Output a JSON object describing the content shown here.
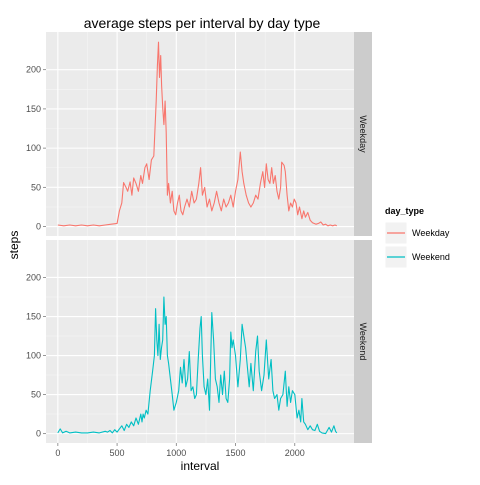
{
  "chart_data": {
    "type": "line",
    "title": "average steps per interval by day type",
    "xlabel": "interval",
    "ylabel": "steps",
    "xlim": [
      -100,
      2500
    ],
    "ylim": [
      -12,
      248
    ],
    "xticks": [
      0,
      500,
      1000,
      1500,
      2000
    ],
    "yticks": [
      0,
      50,
      100,
      150,
      200
    ],
    "grid": true,
    "facets": [
      "Weekday",
      "Weekend"
    ],
    "legend": {
      "title": "day_type",
      "position": "right",
      "entries": [
        "Weekday",
        "Weekend"
      ]
    },
    "series": [
      {
        "name": "Weekday",
        "color": "#F8766D",
        "points": [
          [
            0,
            2
          ],
          [
            50,
            1
          ],
          [
            100,
            2
          ],
          [
            150,
            1
          ],
          [
            200,
            2
          ],
          [
            250,
            1
          ],
          [
            300,
            2
          ],
          [
            350,
            1
          ],
          [
            400,
            2
          ],
          [
            450,
            3
          ],
          [
            500,
            4
          ],
          [
            520,
            20
          ],
          [
            540,
            30
          ],
          [
            555,
            56
          ],
          [
            575,
            50
          ],
          [
            590,
            45
          ],
          [
            610,
            57
          ],
          [
            625,
            40
          ],
          [
            640,
            62
          ],
          [
            660,
            55
          ],
          [
            680,
            45
          ],
          [
            700,
            65
          ],
          [
            715,
            55
          ],
          [
            735,
            75
          ],
          [
            750,
            80
          ],
          [
            770,
            60
          ],
          [
            790,
            85
          ],
          [
            810,
            90
          ],
          [
            830,
            160
          ],
          [
            840,
            205
          ],
          [
            850,
            235
          ],
          [
            858,
            190
          ],
          [
            868,
            218
          ],
          [
            876,
            180
          ],
          [
            886,
            150
          ],
          [
            895,
            130
          ],
          [
            905,
            160
          ],
          [
            915,
            120
          ],
          [
            925,
            40
          ],
          [
            935,
            55
          ],
          [
            950,
            30
          ],
          [
            965,
            45
          ],
          [
            980,
            20
          ],
          [
            995,
            15
          ],
          [
            1010,
            30
          ],
          [
            1025,
            40
          ],
          [
            1040,
            20
          ],
          [
            1055,
            15
          ],
          [
            1070,
            25
          ],
          [
            1090,
            35
          ],
          [
            1110,
            25
          ],
          [
            1130,
            45
          ],
          [
            1150,
            30
          ],
          [
            1170,
            35
          ],
          [
            1190,
            55
          ],
          [
            1205,
            75
          ],
          [
            1220,
            40
          ],
          [
            1240,
            50
          ],
          [
            1260,
            25
          ],
          [
            1280,
            35
          ],
          [
            1300,
            20
          ],
          [
            1320,
            30
          ],
          [
            1340,
            45
          ],
          [
            1360,
            30
          ],
          [
            1380,
            20
          ],
          [
            1400,
            35
          ],
          [
            1420,
            25
          ],
          [
            1440,
            30
          ],
          [
            1460,
            40
          ],
          [
            1480,
            25
          ],
          [
            1500,
            45
          ],
          [
            1520,
            60
          ],
          [
            1540,
            95
          ],
          [
            1555,
            70
          ],
          [
            1570,
            55
          ],
          [
            1590,
            40
          ],
          [
            1610,
            30
          ],
          [
            1630,
            25
          ],
          [
            1650,
            30
          ],
          [
            1670,
            40
          ],
          [
            1690,
            35
          ],
          [
            1710,
            55
          ],
          [
            1730,
            70
          ],
          [
            1745,
            50
          ],
          [
            1760,
            80
          ],
          [
            1775,
            60
          ],
          [
            1790,
            55
          ],
          [
            1805,
            75
          ],
          [
            1820,
            55
          ],
          [
            1835,
            65
          ],
          [
            1850,
            45
          ],
          [
            1865,
            35
          ],
          [
            1880,
            50
          ],
          [
            1890,
            82
          ],
          [
            1900,
            80
          ],
          [
            1910,
            78
          ],
          [
            1920,
            70
          ],
          [
            1935,
            40
          ],
          [
            1950,
            20
          ],
          [
            1965,
            30
          ],
          [
            1980,
            25
          ],
          [
            1995,
            35
          ],
          [
            2010,
            30
          ],
          [
            2025,
            15
          ],
          [
            2040,
            25
          ],
          [
            2060,
            10
          ],
          [
            2075,
            20
          ],
          [
            2090,
            12
          ],
          [
            2110,
            18
          ],
          [
            2130,
            8
          ],
          [
            2150,
            5
          ],
          [
            2180,
            3
          ],
          [
            2200,
            4
          ],
          [
            2220,
            6
          ],
          [
            2240,
            2
          ],
          [
            2260,
            3
          ],
          [
            2280,
            1
          ],
          [
            2300,
            2
          ],
          [
            2320,
            1
          ],
          [
            2340,
            2
          ],
          [
            2355,
            1
          ]
        ]
      },
      {
        "name": "Weekend",
        "color": "#00BFC4",
        "points": [
          [
            0,
            1
          ],
          [
            20,
            6
          ],
          [
            40,
            1
          ],
          [
            70,
            3
          ],
          [
            100,
            1
          ],
          [
            150,
            2
          ],
          [
            200,
            1
          ],
          [
            250,
            1
          ],
          [
            300,
            2
          ],
          [
            350,
            1
          ],
          [
            400,
            3
          ],
          [
            420,
            2
          ],
          [
            440,
            4
          ],
          [
            460,
            1
          ],
          [
            480,
            5
          ],
          [
            500,
            2
          ],
          [
            520,
            6
          ],
          [
            540,
            10
          ],
          [
            560,
            4
          ],
          [
            580,
            12
          ],
          [
            600,
            8
          ],
          [
            620,
            15
          ],
          [
            640,
            10
          ],
          [
            660,
            20
          ],
          [
            680,
            12
          ],
          [
            700,
            25
          ],
          [
            710,
            15
          ],
          [
            720,
            25
          ],
          [
            730,
            20
          ],
          [
            745,
            30
          ],
          [
            760,
            25
          ],
          [
            780,
            55
          ],
          [
            800,
            80
          ],
          [
            815,
            100
          ],
          [
            825,
            160
          ],
          [
            835,
            120
          ],
          [
            845,
            100
          ],
          [
            855,
            140
          ],
          [
            865,
            95
          ],
          [
            875,
            110
          ],
          [
            885,
            120
          ],
          [
            895,
            175
          ],
          [
            905,
            140
          ],
          [
            915,
            150
          ],
          [
            925,
            100
          ],
          [
            935,
            90
          ],
          [
            950,
            70
          ],
          [
            965,
            50
          ],
          [
            980,
            30
          ],
          [
            1000,
            40
          ],
          [
            1020,
            55
          ],
          [
            1035,
            85
          ],
          [
            1050,
            65
          ],
          [
            1065,
            95
          ],
          [
            1080,
            60
          ],
          [
            1095,
            70
          ],
          [
            1110,
            105
          ],
          [
            1125,
            55
          ],
          [
            1140,
            60
          ],
          [
            1155,
            45
          ],
          [
            1170,
            50
          ],
          [
            1185,
            95
          ],
          [
            1200,
            135
          ],
          [
            1210,
            150
          ],
          [
            1220,
            100
          ],
          [
            1235,
            60
          ],
          [
            1250,
            50
          ],
          [
            1265,
            70
          ],
          [
            1280,
            30
          ],
          [
            1300,
            155
          ],
          [
            1315,
            120
          ],
          [
            1330,
            70
          ],
          [
            1345,
            60
          ],
          [
            1360,
            40
          ],
          [
            1375,
            75
          ],
          [
            1390,
            50
          ],
          [
            1405,
            80
          ],
          [
            1420,
            45
          ],
          [
            1435,
            40
          ],
          [
            1450,
            70
          ],
          [
            1460,
            130
          ],
          [
            1470,
            110
          ],
          [
            1480,
            120
          ],
          [
            1500,
            100
          ],
          [
            1520,
            60
          ],
          [
            1540,
            95
          ],
          [
            1555,
            140
          ],
          [
            1570,
            125
          ],
          [
            1585,
            110
          ],
          [
            1600,
            85
          ],
          [
            1615,
            60
          ],
          [
            1630,
            90
          ],
          [
            1650,
            55
          ],
          [
            1670,
            105
          ],
          [
            1685,
            125
          ],
          [
            1700,
            80
          ],
          [
            1720,
            55
          ],
          [
            1740,
            75
          ],
          [
            1760,
            120
          ],
          [
            1780,
            70
          ],
          [
            1800,
            95
          ],
          [
            1815,
            55
          ],
          [
            1830,
            45
          ],
          [
            1850,
            50
          ],
          [
            1865,
            30
          ],
          [
            1880,
            45
          ],
          [
            1900,
            50
          ],
          [
            1920,
            80
          ],
          [
            1935,
            35
          ],
          [
            1950,
            60
          ],
          [
            1965,
            40
          ],
          [
            1980,
            55
          ],
          [
            2000,
            50
          ],
          [
            2020,
            20
          ],
          [
            2035,
            30
          ],
          [
            2050,
            15
          ],
          [
            2060,
            45
          ],
          [
            2075,
            15
          ],
          [
            2090,
            12
          ],
          [
            2110,
            5
          ],
          [
            2130,
            10
          ],
          [
            2150,
            5
          ],
          [
            2170,
            4
          ],
          [
            2190,
            12
          ],
          [
            2210,
            3
          ],
          [
            2230,
            1
          ],
          [
            2260,
            0
          ],
          [
            2290,
            8
          ],
          [
            2310,
            2
          ],
          [
            2330,
            10
          ],
          [
            2345,
            3
          ],
          [
            2355,
            1
          ]
        ]
      }
    ]
  }
}
